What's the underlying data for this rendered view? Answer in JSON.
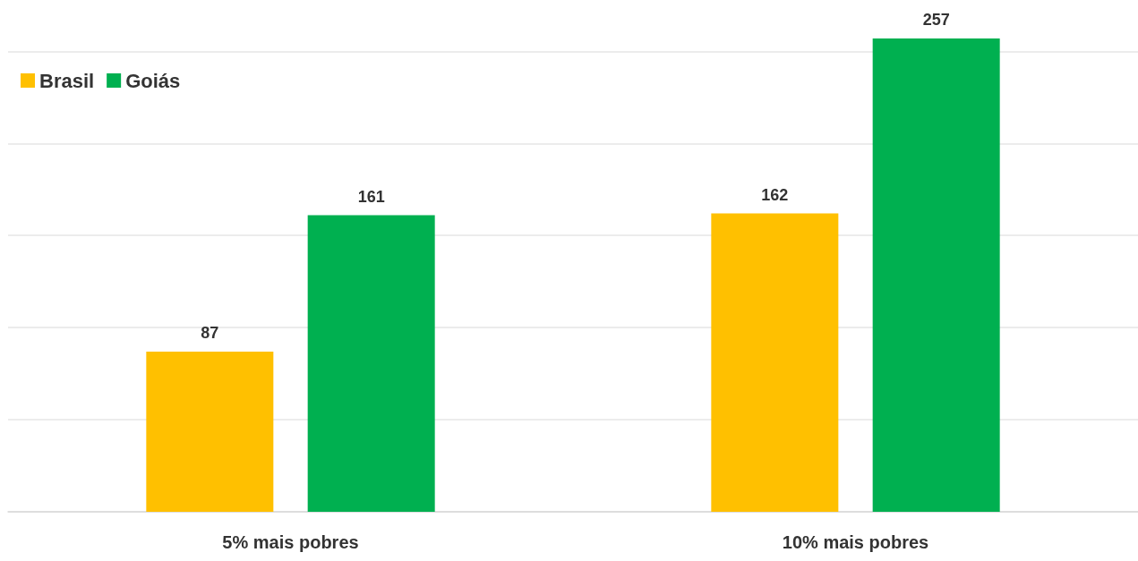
{
  "chart_data": {
    "type": "bar",
    "categories": [
      "5% mais pobres",
      "10% mais pobres"
    ],
    "series": [
      {
        "name": "Brasil",
        "color": "#ffc000",
        "values": [
          87,
          162
        ]
      },
      {
        "name": "Goiás",
        "color": "#00b050",
        "values": [
          161,
          257
        ]
      }
    ],
    "yticks": [
      {
        "value": 0,
        "label": null
      },
      {
        "value": 50,
        "label": null
      },
      {
        "value": 100,
        "label": null
      },
      {
        "value": 150,
        "label": null
      },
      {
        "value": 200,
        "label": null
      },
      {
        "value": 250,
        "label": null
      }
    ],
    "tick_labels": "x",
    "grid": "y",
    "legend": "top left",
    "data_labels": true
  }
}
